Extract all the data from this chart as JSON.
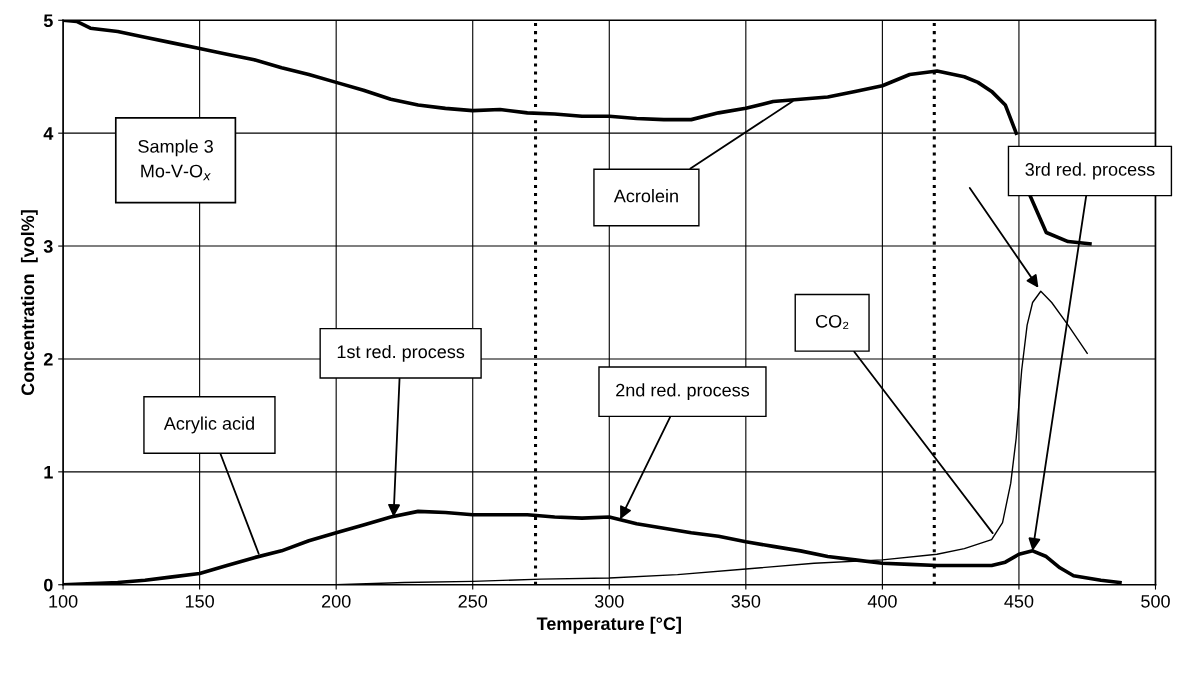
{
  "chart_data": {
    "type": "line",
    "xlabel": "Temperature [°C]",
    "ylabel": "Concentration  [vol%]",
    "xlim": [
      100,
      500
    ],
    "xticks": [
      100,
      150,
      200,
      250,
      300,
      350,
      400,
      450,
      500
    ],
    "ylim": [
      0,
      5
    ],
    "yticks": [
      0,
      1,
      2,
      3,
      4,
      5
    ],
    "grid": true,
    "legend": false,
    "marker": "none",
    "line_style": "solid",
    "series": [
      {
        "name": "Acrolein",
        "color": "#000000",
        "x": [
          100,
          105,
          110,
          120,
          130,
          140,
          150,
          160,
          170,
          180,
          190,
          200,
          210,
          220,
          230,
          240,
          250,
          260,
          270,
          280,
          290,
          300,
          310,
          320,
          330,
          340,
          350,
          360,
          370,
          380,
          390,
          400,
          410,
          420,
          430,
          435,
          440,
          445,
          449,
          451,
          454,
          460,
          468,
          476
        ],
        "values": [
          5.0,
          4.99,
          4.93,
          4.9,
          4.85,
          4.8,
          4.75,
          4.7,
          4.65,
          4.58,
          4.52,
          4.45,
          4.38,
          4.3,
          4.25,
          4.22,
          4.2,
          4.21,
          4.18,
          4.17,
          4.15,
          4.15,
          4.13,
          4.12,
          4.12,
          4.18,
          4.22,
          4.28,
          4.3,
          4.32,
          4.37,
          4.42,
          4.52,
          4.55,
          4.5,
          4.45,
          4.37,
          4.25,
          4.0,
          null,
          3.45,
          3.12,
          3.04,
          3.02
        ]
      },
      {
        "name": "Acrylic acid",
        "color": "#000000",
        "x": [
          100,
          120,
          130,
          140,
          150,
          160,
          170,
          180,
          190,
          200,
          210,
          220,
          230,
          240,
          250,
          260,
          270,
          280,
          290,
          300,
          310,
          320,
          330,
          340,
          350,
          360,
          370,
          380,
          390,
          400,
          410,
          420,
          430,
          440,
          445,
          450,
          455,
          460,
          465,
          470,
          480,
          487
        ],
        "values": [
          0,
          0.02,
          0.04,
          0.07,
          0.1,
          0.17,
          0.24,
          0.3,
          0.39,
          0.46,
          0.53,
          0.6,
          0.65,
          0.64,
          0.62,
          0.62,
          0.62,
          0.6,
          0.59,
          0.6,
          0.54,
          0.5,
          0.46,
          0.43,
          0.38,
          0.34,
          0.3,
          0.25,
          0.22,
          0.19,
          0.18,
          0.17,
          0.17,
          0.17,
          0.2,
          0.27,
          0.3,
          0.25,
          0.15,
          0.08,
          0.04,
          0.02
        ]
      },
      {
        "name": "CO₂",
        "color": "#000000",
        "x": [
          100,
          150,
          200,
          225,
          250,
          275,
          300,
          325,
          350,
          375,
          400,
          420,
          430,
          440,
          444,
          447,
          449,
          451,
          453,
          455,
          458,
          462,
          468,
          475
        ],
        "values": [
          0,
          0,
          0,
          0.02,
          0.03,
          0.05,
          0.06,
          0.09,
          0.14,
          0.19,
          0.22,
          0.27,
          0.32,
          0.4,
          0.55,
          0.9,
          1.3,
          1.9,
          2.3,
          2.5,
          2.6,
          2.5,
          2.3,
          2.05
        ]
      }
    ],
    "ref_lines": [
      {
        "axis": "x",
        "value": 273,
        "color": "#000000",
        "line_style": "dotted"
      },
      {
        "axis": "x",
        "value": 419,
        "color": "#000000",
        "line_style": "dotted"
      }
    ],
    "annotations": [
      "Sample 3\nMo-V-O$_{x}$",
      {
        "text": "1st red. process",
        "x": 221,
        "y": 0.6
      },
      {
        "text": "2nd red. process",
        "x": 304,
        "y": 0.58
      },
      {
        "text": "3rd red. process",
        "x": 455,
        "y": 0.3
      }
    ]
  }
}
